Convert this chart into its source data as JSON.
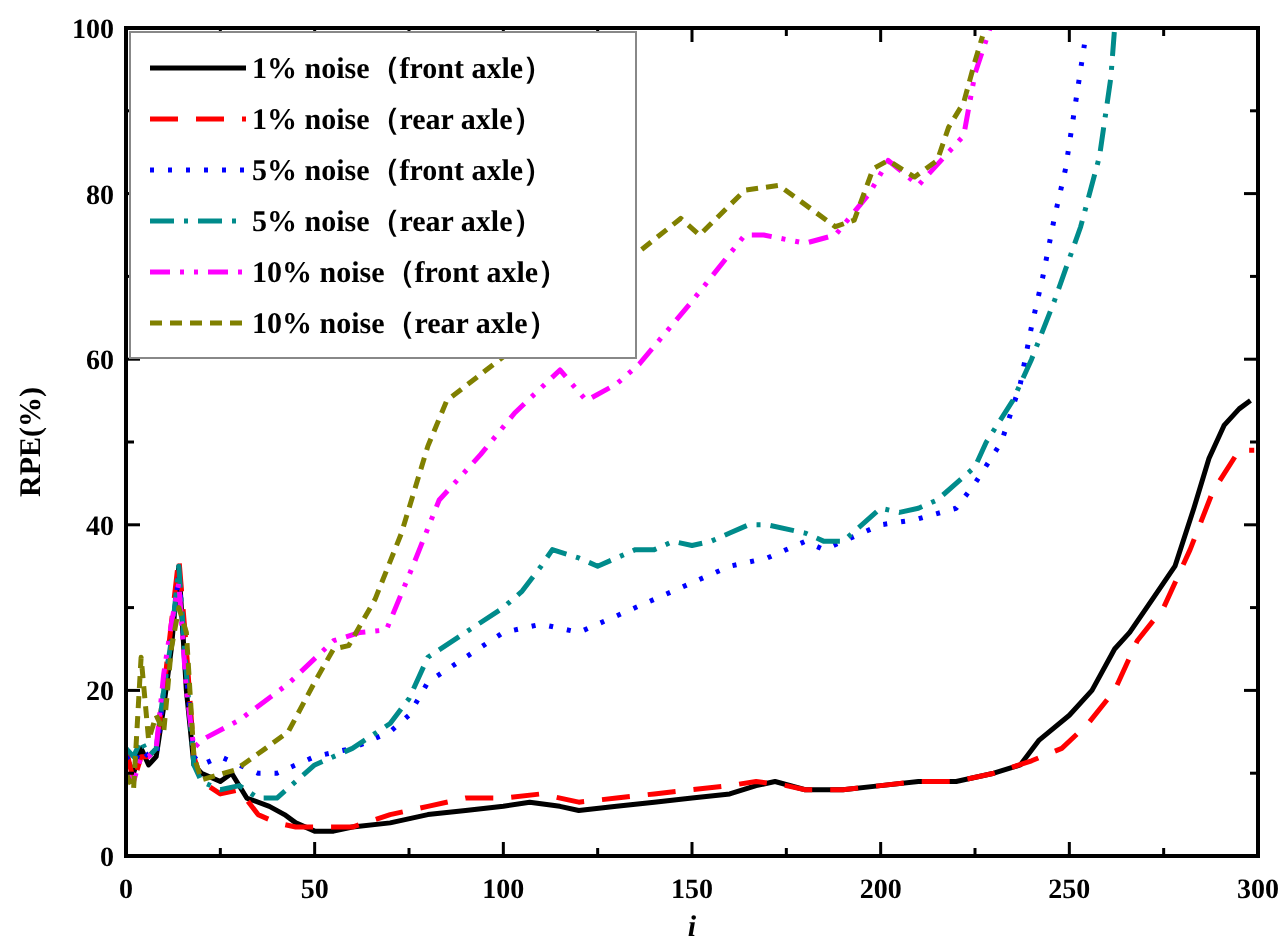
{
  "chart_data": {
    "type": "line",
    "xlabel": "i",
    "ylabel": "RPE(%)",
    "xlim": [
      0,
      300
    ],
    "ylim": [
      0,
      100
    ],
    "xticks": [
      0,
      {
        "value": 25,
        "label": null
      },
      50,
      {
        "value": 75,
        "label": null
      },
      100,
      {
        "value": 125,
        "label": null
      },
      150,
      {
        "value": 175,
        "label": null
      },
      200,
      {
        "value": 225,
        "label": null
      },
      250,
      {
        "value": 275,
        "label": null
      },
      300
    ],
    "yticks": [
      0,
      {
        "value": 10,
        "label": null
      },
      20,
      {
        "value": 30,
        "label": null
      },
      40,
      {
        "value": 50,
        "label": null
      },
      60,
      {
        "value": 70,
        "label": null
      },
      80,
      {
        "value": 90,
        "label": null
      },
      100
    ],
    "grid": false,
    "legend": "top left",
    "marker": "none",
    "series": [
      {
        "name": "1% noise（front axle）",
        "color": "#000000",
        "line_style": "solid",
        "x": [
          0,
          2,
          4,
          6,
          8,
          10,
          12,
          14,
          16,
          18,
          20,
          25,
          28,
          32,
          38,
          42,
          45,
          50,
          55,
          60,
          70,
          80,
          90,
          100,
          107,
          115,
          120,
          130,
          140,
          150,
          160,
          167,
          172,
          180,
          190,
          200,
          210,
          220,
          230,
          237,
          242,
          250,
          256,
          262,
          266,
          272,
          278,
          283,
          287,
          291,
          295,
          298
        ],
        "values": [
          12,
          10,
          13,
          11,
          12,
          18,
          25,
          35,
          20,
          11,
          10,
          9,
          10,
          7,
          6,
          5,
          4,
          3,
          3,
          3.5,
          4,
          5,
          5.5,
          6,
          6.5,
          6,
          5.5,
          6,
          6.5,
          7,
          7.5,
          8.5,
          9,
          8,
          8,
          8.5,
          9,
          9,
          10,
          11,
          14,
          17,
          20,
          25,
          27,
          31,
          35,
          42,
          48,
          52,
          54,
          55
        ]
      },
      {
        "name": "1% noise（rear axle）",
        "color": "#ff0000",
        "line_style": "longdash",
        "x": [
          0,
          2,
          4,
          6,
          8,
          10,
          12,
          14,
          16,
          18,
          20,
          25,
          30,
          35,
          40,
          45,
          50,
          55,
          60,
          70,
          80,
          90,
          100,
          110,
          120,
          130,
          140,
          150,
          160,
          167,
          175,
          180,
          190,
          200,
          210,
          220,
          230,
          240,
          248,
          255,
          262,
          268,
          275,
          282,
          288,
          295,
          299
        ],
        "values": [
          13,
          9,
          12,
          12,
          13,
          20,
          28,
          36,
          25,
          12,
          9,
          7.5,
          8,
          5,
          4,
          3.5,
          3.5,
          3.5,
          3.5,
          5,
          6,
          7,
          7,
          7.5,
          6.5,
          7,
          7.5,
          8,
          8.5,
          9,
          8.5,
          8,
          8,
          8.5,
          9,
          9,
          10,
          11.5,
          13,
          16,
          20,
          26,
          30,
          37,
          44,
          49,
          49
        ]
      },
      {
        "name": "5% noise（front axle）",
        "color": "#0000ff",
        "line_style": "dotted",
        "x": [
          0,
          2,
          4,
          6,
          8,
          10,
          12,
          14,
          16,
          18,
          20,
          25,
          30,
          35,
          40,
          45,
          50,
          60,
          70,
          75,
          80,
          90,
          100,
          110,
          120,
          130,
          140,
          150,
          160,
          170,
          180,
          185,
          190,
          200,
          209,
          220,
          225,
          232,
          237,
          240,
          243,
          246,
          249,
          251,
          254
        ],
        "values": [
          12,
          11,
          13,
          12,
          12,
          20,
          26,
          34,
          22,
          12,
          11,
          12,
          11,
          10,
          10,
          11,
          12,
          13,
          15,
          17,
          21,
          24,
          27,
          28,
          27,
          29,
          31,
          33,
          35,
          36,
          38,
          37,
          38,
          40,
          40.6,
          42,
          45,
          50,
          57,
          64,
          70,
          77,
          83,
          89,
          98
        ]
      },
      {
        "name": "5% noise（rear axle）",
        "color": "#008b8b",
        "line_style": "dashdot",
        "x": [
          0,
          2,
          4,
          6,
          8,
          10,
          12,
          14,
          16,
          18,
          20,
          25,
          30,
          35,
          40,
          45,
          50,
          60,
          70,
          75,
          80,
          90,
          100,
          105,
          110,
          113,
          120,
          125,
          130,
          135,
          140,
          145,
          150,
          155,
          160,
          165,
          170,
          180,
          185,
          190,
          200,
          205,
          210,
          215,
          220,
          225,
          228,
          235,
          240,
          246,
          253,
          258,
          261,
          262
        ],
        "values": [
          13,
          12,
          14,
          12,
          13,
          20,
          26,
          35,
          22,
          11,
          9,
          8,
          8.5,
          7,
          7,
          9,
          11,
          13,
          16,
          19,
          24,
          27,
          30,
          32,
          35,
          37,
          36,
          35,
          36,
          37,
          37,
          38,
          37.5,
          38,
          39,
          40,
          40,
          39,
          38,
          38,
          42,
          41.5,
          42,
          43,
          45,
          47,
          50,
          55,
          60,
          67,
          76,
          84.5,
          94,
          100
        ]
      },
      {
        "name": "10% noise（front axle）",
        "color": "#ff00ff",
        "line_style": "dashdotdot",
        "x": [
          0,
          2,
          4,
          6,
          8,
          10,
          12,
          14,
          16,
          18,
          20,
          30,
          43,
          55,
          62,
          69,
          76,
          83,
          94,
          103,
          115,
          122,
          130,
          136,
          150,
          164,
          169,
          180,
          188,
          197,
          202,
          210,
          217,
          222,
          225,
          229
        ],
        "values": [
          10,
          9,
          12,
          12,
          13,
          22,
          28,
          33,
          20,
          13,
          14,
          16.4,
          20.8,
          26,
          27,
          27.3,
          35,
          43,
          48.5,
          53.5,
          58.7,
          55,
          57,
          59.4,
          67,
          75,
          75,
          74,
          75,
          80,
          84,
          81,
          84.5,
          87,
          94.5,
          100
        ]
      },
      {
        "name": "10% noise（rear axle）",
        "color": "#808000",
        "line_style": "dashed",
        "x": [
          0,
          2,
          4,
          6,
          8,
          10,
          12,
          14,
          16,
          18,
          20,
          29,
          37,
          43,
          50,
          55,
          59,
          66,
          73,
          80,
          85,
          136,
          147,
          152,
          164,
          173,
          179,
          188,
          193,
          198,
          202,
          209,
          215,
          218,
          222,
          225,
          227
        ],
        "values": [
          10,
          8,
          24,
          14,
          17,
          15,
          25,
          30,
          27,
          12,
          9.2,
          10.4,
          13,
          15,
          21,
          25,
          25.4,
          31,
          39,
          49.5,
          55,
          73,
          77,
          75,
          80.4,
          81,
          79,
          76,
          76.8,
          83,
          84,
          82,
          84,
          88,
          91,
          96,
          99
        ]
      }
    ]
  }
}
